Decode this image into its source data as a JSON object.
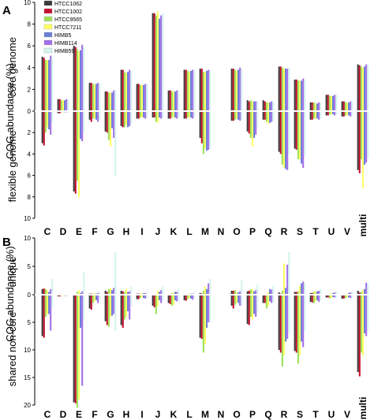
{
  "panels": [
    {
      "letter": "A",
      "ylabel": "COG  abundance (%)",
      "upper_label": "core genome",
      "lower_label": "flexible genome",
      "upper_ticks": [
        "10",
        "8",
        "6",
        "4",
        "2",
        "0"
      ],
      "lower_ticks": [
        "2",
        "4",
        "6",
        "8",
        "10"
      ]
    },
    {
      "letter": "B",
      "ylabel": "COG abundance (%)",
      "upper_label": "unique",
      "lower_label": "shared non-core",
      "upper_ticks": [
        "10",
        "5",
        "0"
      ],
      "lower_ticks": [
        "5",
        "10",
        "15",
        "20"
      ]
    }
  ],
  "chart_data": [
    {
      "type": "bar",
      "title": "",
      "categories": [
        "C",
        "D",
        "E",
        "F",
        "G",
        "H",
        "I",
        "J",
        "K",
        "L",
        "M",
        "N",
        "O",
        "P",
        "Q",
        "R",
        "S",
        "T",
        "U",
        "V",
        "multi"
      ],
      "ylim_up": [
        0,
        10
      ],
      "ylim_down": [
        0,
        10
      ],
      "series": [
        {
          "name": "HTCC1062",
          "color": "#3a3a3a",
          "up": [
            5.0,
            1.1,
            6.0,
            2.6,
            1.8,
            3.8,
            2.5,
            9.0,
            1.9,
            3.8,
            3.9,
            0,
            3.9,
            1.0,
            1.0,
            4.1,
            2.9,
            0.8,
            1.5,
            0.9,
            4.3
          ],
          "down": [
            3.0,
            0.2,
            7.5,
            0.8,
            1.9,
            1.4,
            0.7,
            0.6,
            0.7,
            0.7,
            2.5,
            0,
            0.9,
            1.9,
            0.8,
            3.8,
            3.5,
            0.8,
            0.4,
            0.5,
            5.5
          ]
        },
        {
          "name": "HTCC1002",
          "color": "#c8102e",
          "up": [
            4.9,
            1.1,
            5.9,
            2.6,
            1.8,
            3.8,
            2.5,
            9.0,
            1.9,
            3.8,
            3.9,
            0,
            3.9,
            0.9,
            0.9,
            4.1,
            2.9,
            0.8,
            1.5,
            0.9,
            4.2
          ],
          "down": [
            3.2,
            0.2,
            7.7,
            1.0,
            2.0,
            1.5,
            0.7,
            0.6,
            0.7,
            0.7,
            3.0,
            0,
            0.9,
            2.1,
            0.8,
            4.0,
            3.6,
            0.8,
            0.4,
            0.5,
            5.8
          ]
        },
        {
          "name": "HTCC9565",
          "color": "#9ee05a",
          "up": [
            4.7,
            1.0,
            5.7,
            2.5,
            1.7,
            3.6,
            2.4,
            8.8,
            1.8,
            3.7,
            3.6,
            0,
            3.8,
            1.0,
            0.8,
            4.0,
            2.8,
            0.8,
            1.4,
            0.8,
            4.1
          ],
          "down": [
            2.0,
            0.1,
            6.5,
            0.7,
            2.7,
            1.5,
            0.6,
            1.0,
            0.6,
            0.6,
            4.0,
            0,
            0.8,
            2.5,
            1.0,
            5.0,
            4.5,
            0.7,
            0.3,
            0.4,
            4.5
          ]
        },
        {
          "name": "HTCC7211",
          "color": "#ffff66",
          "up": [
            4.7,
            1.0,
            5.5,
            2.5,
            1.7,
            3.5,
            2.4,
            9.2,
            1.8,
            3.6,
            3.6,
            0,
            3.7,
            0.9,
            0.8,
            3.9,
            2.8,
            0.7,
            1.4,
            0.8,
            4.0
          ],
          "down": [
            1.5,
            0.1,
            8.0,
            0.7,
            3.3,
            1.3,
            0.6,
            1.1,
            0.6,
            0.6,
            3.5,
            0,
            0.7,
            3.3,
            1.2,
            5.3,
            4.5,
            0.7,
            0.3,
            0.4,
            7.2
          ]
        },
        {
          "name": "HIMB5",
          "color": "#6a7ed8",
          "up": [
            4.7,
            1.0,
            5.6,
            2.5,
            1.7,
            3.6,
            2.4,
            8.5,
            1.8,
            3.7,
            3.7,
            0,
            3.8,
            0.9,
            0.8,
            3.9,
            2.8,
            0.7,
            1.4,
            0.8,
            4.1
          ],
          "down": [
            1.7,
            0.1,
            2.6,
            0.8,
            1.6,
            1.5,
            0.6,
            0.6,
            0.6,
            0.6,
            3.7,
            0,
            0.8,
            2.5,
            1.1,
            5.4,
            4.9,
            0.7,
            0.3,
            0.4,
            5.0
          ]
        },
        {
          "name": "HIMB114",
          "color": "#a270e8",
          "up": [
            5.1,
            1.1,
            6.1,
            2.6,
            1.9,
            3.8,
            2.5,
            8.8,
            1.9,
            3.8,
            3.8,
            0,
            4.0,
            0.9,
            0.9,
            3.9,
            3.0,
            0.8,
            1.5,
            0.9,
            4.3
          ],
          "down": [
            2.2,
            0.1,
            2.8,
            1.0,
            2.5,
            1.4,
            0.7,
            0.7,
            0.7,
            0.7,
            3.6,
            0,
            0.9,
            2.2,
            1.0,
            5.5,
            5.3,
            0.8,
            0.4,
            0.5,
            4.8
          ]
        },
        {
          "name": "HIMB59",
          "color": "#d4f4ee",
          "up": [
            5.0,
            1.1,
            5.9,
            2.5,
            1.9,
            3.7,
            2.5,
            9.0,
            1.9,
            3.8,
            3.8,
            0,
            3.9,
            0.9,
            0.9,
            4.0,
            2.9,
            0.8,
            1.5,
            0.9,
            4.2
          ],
          "down": [
            1.0,
            0.1,
            2.0,
            0.8,
            6.1,
            1.2,
            0.6,
            0.6,
            0.6,
            0.6,
            3.5,
            0,
            0.8,
            1.5,
            0.9,
            4.0,
            4.1,
            0.7,
            0.3,
            0.4,
            4.4
          ]
        }
      ]
    },
    {
      "type": "bar",
      "title": "",
      "categories": [
        "C",
        "D",
        "E",
        "F",
        "G",
        "H",
        "I",
        "J",
        "K",
        "L",
        "M",
        "N",
        "O",
        "P",
        "Q",
        "R",
        "S",
        "T",
        "U",
        "V",
        "multi"
      ],
      "ylim_up": [
        0,
        10
      ],
      "ylim_down": [
        0,
        20
      ],
      "series": [
        {
          "name": "HTCC1062",
          "color": "#3a3a3a",
          "up": [
            1.0,
            0.1,
            0.1,
            0.2,
            0.7,
            0.7,
            0.2,
            0,
            0.1,
            0.1,
            0.3,
            0,
            0.7,
            0.6,
            0.1,
            0.4,
            0.5,
            0.3,
            0.1,
            0.1,
            0.7
          ],
          "down": [
            7.5,
            0.3,
            19.5,
            2.5,
            4.8,
            5.5,
            0.8,
            2.0,
            1.5,
            1.0,
            7.8,
            0,
            2.0,
            5.3,
            1.5,
            10.0,
            10.2,
            1.3,
            0.5,
            0.7,
            14.0
          ]
        },
        {
          "name": "HTCC1002",
          "color": "#c8102e",
          "up": [
            1.1,
            0.1,
            0.1,
            0.2,
            0.5,
            0.6,
            0.2,
            0,
            0.1,
            0.1,
            0.2,
            0,
            0.7,
            0.7,
            0.1,
            0.2,
            0.5,
            0.3,
            0.1,
            0.1,
            0.4
          ],
          "down": [
            7.8,
            0.3,
            19.7,
            2.7,
            5.5,
            6.0,
            0.8,
            2.3,
            1.7,
            1.1,
            8.0,
            0,
            2.5,
            5.5,
            1.5,
            10.5,
            10.5,
            1.4,
            0.5,
            0.7,
            14.8
          ]
        },
        {
          "name": "HTCC9565",
          "color": "#9ee05a",
          "up": [
            1.0,
            0.1,
            0.5,
            0.2,
            1.0,
            0.5,
            0.2,
            0,
            0.3,
            0.1,
            0.7,
            0,
            0.8,
            0.9,
            0.1,
            0.7,
            0.6,
            0.5,
            0.2,
            0.1,
            0.5
          ],
          "down": [
            4.0,
            0.2,
            20.5,
            1.5,
            5.8,
            4.5,
            0.5,
            3.5,
            2.0,
            0.8,
            10.5,
            0,
            1.8,
            4.0,
            2.5,
            13.0,
            12.5,
            1.5,
            0.7,
            0.6,
            10.5
          ]
        },
        {
          "name": "HTCC7211",
          "color": "#ffff66",
          "up": [
            0.8,
            0.1,
            0.8,
            0.3,
            1.2,
            1.0,
            0.3,
            0.7,
            0.4,
            0.2,
            1.5,
            0,
            0.4,
            1.0,
            0.5,
            5.5,
            1.5,
            0.6,
            0.3,
            0.2,
            0.8
          ],
          "down": [
            3.5,
            0.2,
            19.0,
            1.2,
            4.0,
            4.0,
            0.5,
            2.0,
            1.8,
            0.6,
            9.0,
            0,
            1.5,
            4.5,
            2.0,
            11.0,
            11.0,
            1.2,
            0.6,
            0.5,
            11.0
          ]
        },
        {
          "name": "HIMB5",
          "color": "#6a7ed8",
          "up": [
            0.5,
            0.1,
            0.3,
            0.2,
            0.8,
            0.5,
            0.3,
            0.5,
            0.5,
            0.2,
            1.0,
            0,
            0.4,
            0.6,
            1.0,
            1.2,
            2.0,
            0.6,
            0.3,
            0.3,
            1.0
          ],
          "down": [
            3.5,
            0.2,
            6.0,
            1.0,
            3.8,
            3.0,
            0.6,
            1.0,
            1.0,
            0.7,
            6.0,
            0,
            1.5,
            3.5,
            1.2,
            8.5,
            8.5,
            1.0,
            0.4,
            0.5,
            7.0
          ]
        },
        {
          "name": "HIMB114",
          "color": "#a270e8",
          "up": [
            1.0,
            0.1,
            0.6,
            0.3,
            1.2,
            0.6,
            0.3,
            0.8,
            0.5,
            0.2,
            2.0,
            0,
            0.6,
            0.8,
            0.9,
            5.3,
            2.3,
            0.7,
            0.4,
            0.4,
            2.1
          ],
          "down": [
            6.5,
            0.2,
            16.5,
            1.5,
            3.5,
            4.5,
            0.7,
            1.5,
            1.2,
            0.9,
            5.0,
            0,
            2.0,
            4.0,
            1.5,
            8.0,
            9.5,
            1.3,
            0.5,
            0.6,
            7.5
          ]
        },
        {
          "name": "HIMB59",
          "color": "#d4f4ee",
          "up": [
            2.8,
            0.1,
            4.0,
            0.5,
            7.5,
            1.5,
            0.5,
            1.5,
            1.0,
            0.5,
            2.8,
            0,
            2.5,
            1.8,
            1.5,
            7.5,
            2.0,
            1.0,
            0.6,
            0.5,
            2.0
          ],
          "down": [
            2.5,
            0.1,
            4.5,
            0.8,
            6.5,
            2.0,
            0.5,
            1.0,
            1.2,
            0.6,
            5.0,
            0,
            2.0,
            3.0,
            1.5,
            7.0,
            6.5,
            1.0,
            0.5,
            0.5,
            6.5
          ]
        }
      ]
    }
  ]
}
